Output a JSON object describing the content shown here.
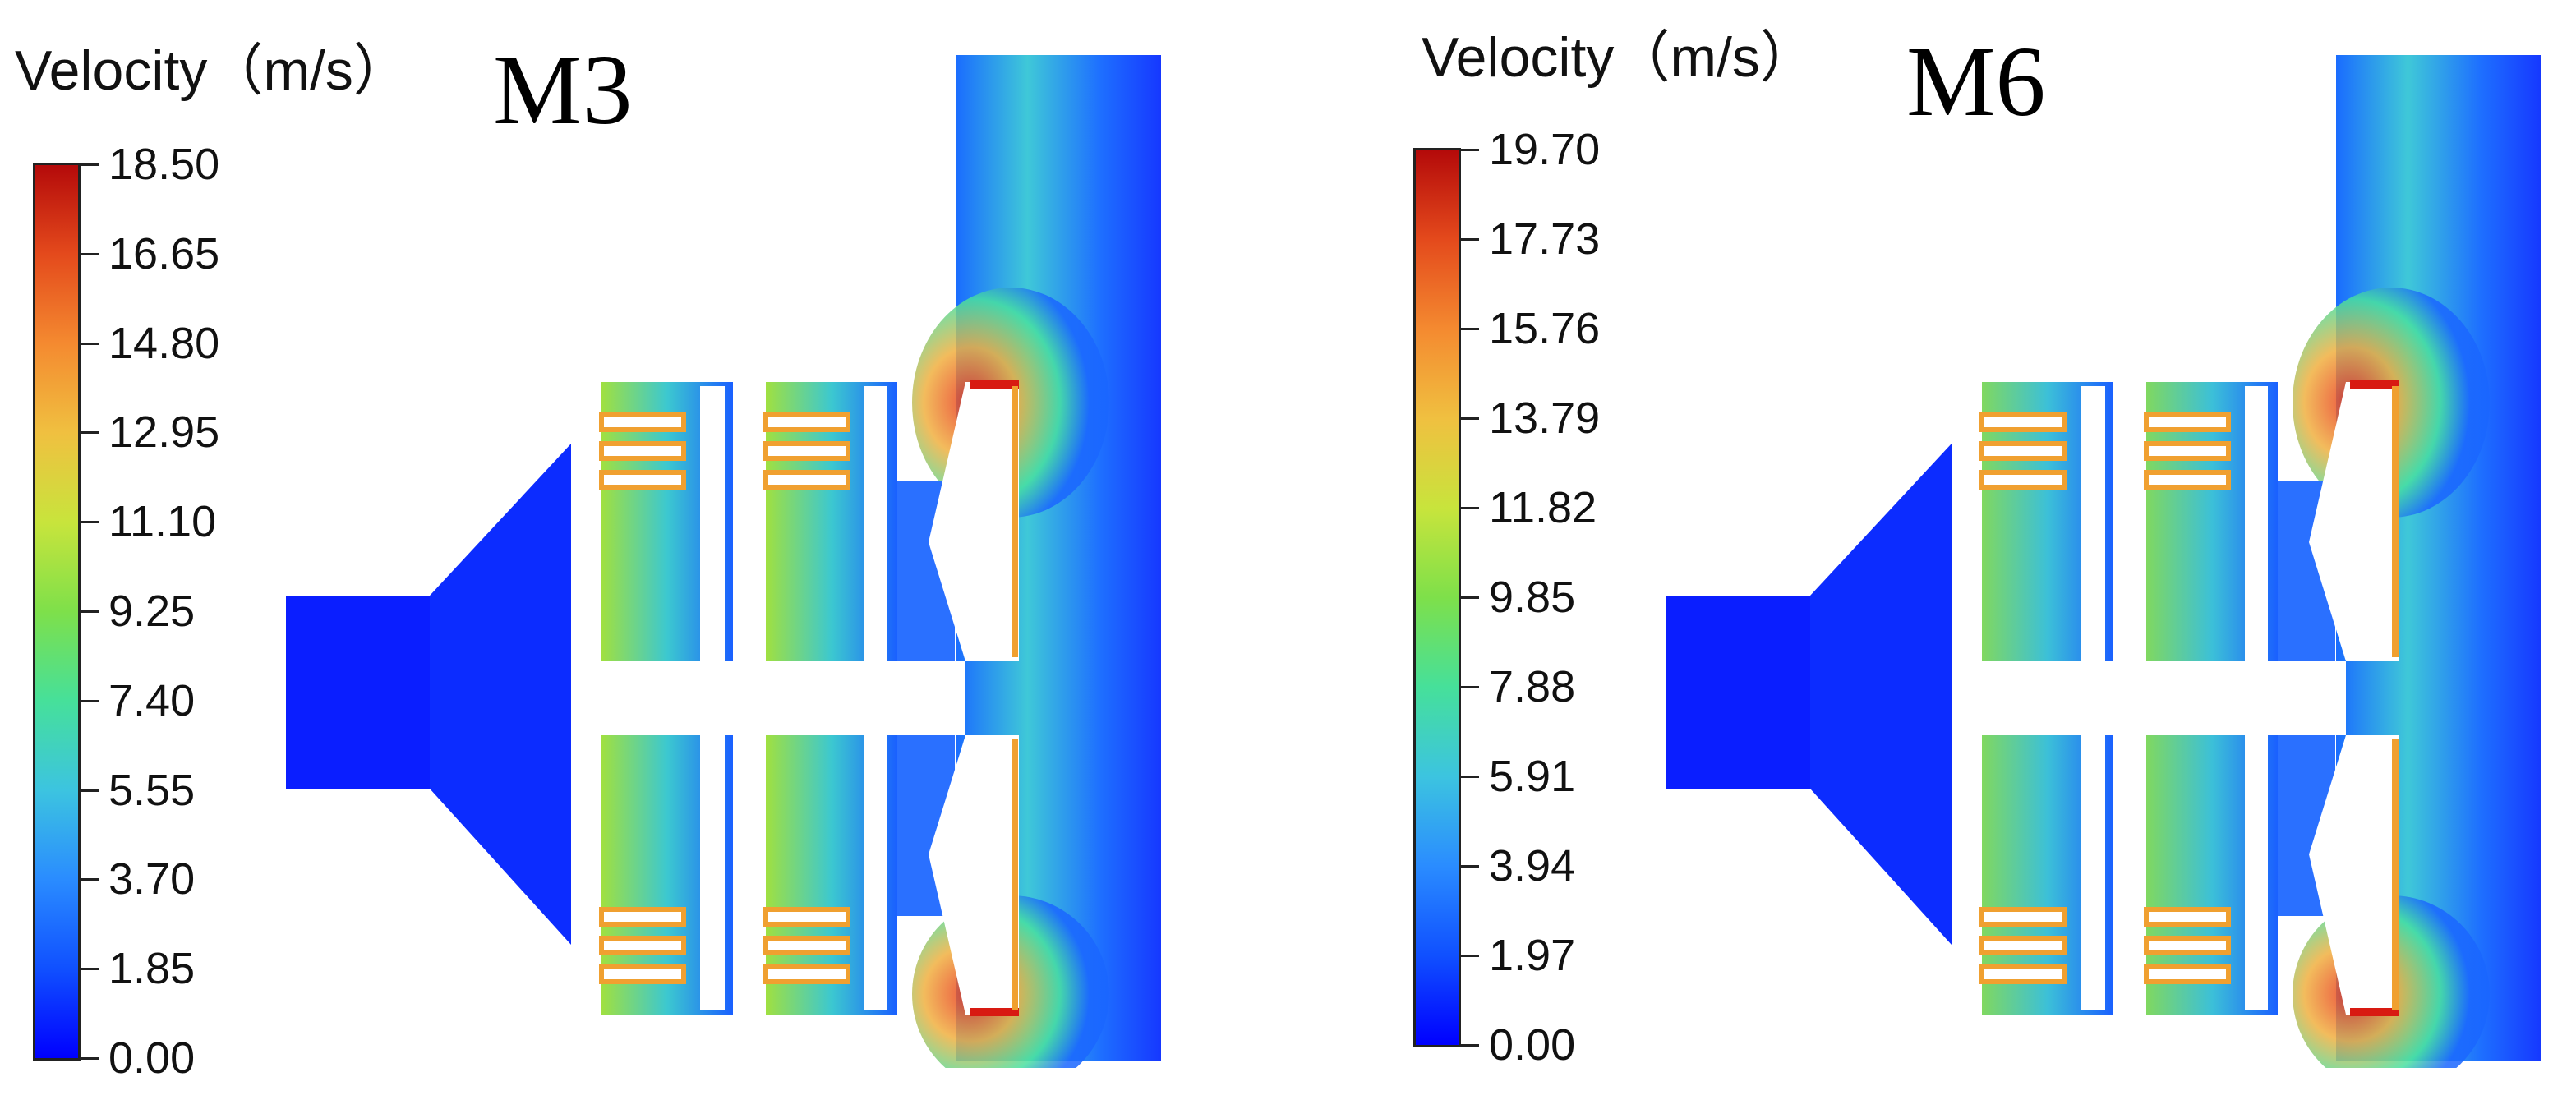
{
  "panels": [
    {
      "id": "M3",
      "title": "Velocity（m/s）",
      "model": "M3",
      "colorbar": [
        "18.50",
        "16.65",
        "14.80",
        "12.95",
        "11.10",
        "9.25",
        "7.40",
        "5.55",
        "3.70",
        "1.85",
        "0.00"
      ]
    },
    {
      "id": "M6",
      "title": "Velocity（m/s）",
      "model": "M6",
      "colorbar": [
        "19.70",
        "17.73",
        "15.76",
        "13.79",
        "11.82",
        "9.85",
        "7.88",
        "5.91",
        "3.94",
        "1.97",
        "0.00"
      ]
    }
  ],
  "colors": {
    "low": "#0000ff",
    "mid": "#46e09a",
    "high": "#b40a0a"
  }
}
